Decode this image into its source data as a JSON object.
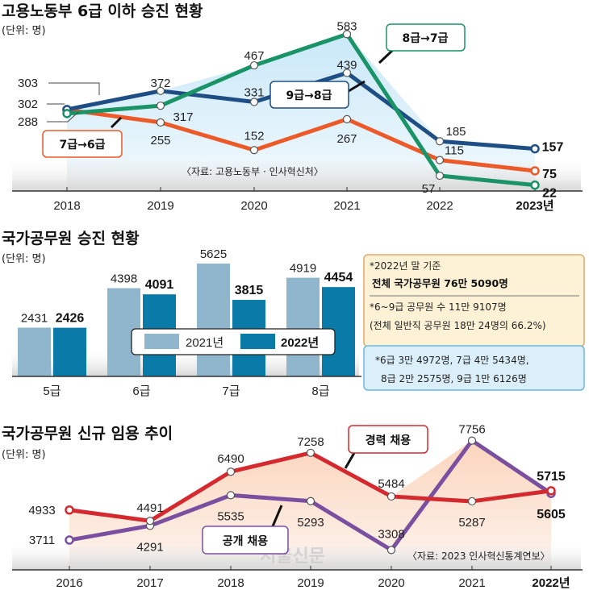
{
  "chart_data": [
    {
      "type": "line",
      "title": "고용노동부 6급 이하 승진 현황",
      "unit": "(단위: 명)",
      "categories": [
        "2018",
        "2019",
        "2020",
        "2021",
        "2022",
        "2023년"
      ],
      "series": [
        {
          "name": "9급→8급",
          "color": "#1f4e85",
          "values": [
            303,
            372,
            331,
            439,
            185,
            157
          ]
        },
        {
          "name": "8급→7급",
          "color": "#1a9366",
          "values": [
            288,
            317,
            467,
            583,
            57,
            22
          ]
        },
        {
          "name": "7급→6급",
          "color": "#ec5a2a",
          "values": [
            302,
            255,
            152,
            267,
            115,
            75
          ]
        }
      ],
      "ylim": [
        0,
        620
      ],
      "source": "〈자료: 고용노동부 · 인사혁신처〉",
      "last_category_bold": true
    },
    {
      "type": "bar",
      "title": "국가공무원 승진 현황",
      "unit": "(단위: 명)",
      "categories": [
        "5급",
        "6급",
        "7급",
        "8급"
      ],
      "series": [
        {
          "name": "2021년",
          "color": "#8fb6cc",
          "values": [
            2431,
            4398,
            5625,
            4919
          ]
        },
        {
          "name": "2022년",
          "color": "#0a7aa8",
          "values": [
            2426,
            4091,
            3815,
            4454
          ]
        }
      ],
      "ylim": [
        0,
        6300
      ],
      "legend": "center"
    },
    {
      "type": "line",
      "title": "국가공무원 신규 임용 추이",
      "unit": "(단위: 명)",
      "categories": [
        "2016",
        "2017",
        "2018",
        "2019",
        "2020",
        "2021",
        "2022년"
      ],
      "series": [
        {
          "name": "경력 채용",
          "color": "#d42a2f",
          "values": [
            4933,
            4491,
            6490,
            7258,
            5484,
            5287,
            5715
          ]
        },
        {
          "name": "공개 채용",
          "color": "#7b4fa0",
          "values": [
            3711,
            4291,
            5535,
            5293,
            3308,
            7756,
            5605
          ]
        }
      ],
      "ylim": [
        2500,
        8300
      ],
      "source": "〈자료: 2023 인사혁신통계연보〉",
      "last_category_bold": true
    }
  ],
  "info_box": {
    "line1": "*2022년 말 기준",
    "line2": "전체 국가공무원 76만 5090명",
    "line3": "*6~9급 공무원 수 11만 9107명",
    "line4": "(전체 일반직 공무원 18만 24명의 66.2%)"
  },
  "breakdown_box": {
    "line1": "*6급 3만 4972명, 7급 4만 5434명,",
    "line2": "8급 2만 2575명, 9급 1만 6126명"
  },
  "watermark": "서울신문",
  "colors": {
    "panel1_bg": "#dff1fb",
    "panel3_bg": "#fde3d3",
    "info_bg": "#fdf2d6",
    "info_border": "#e2a866",
    "breakdown_bg": "#dbeffa",
    "breakdown_border": "#6cb7e0"
  }
}
